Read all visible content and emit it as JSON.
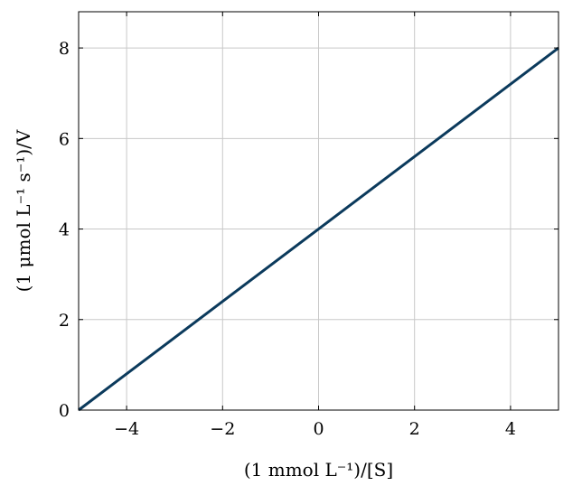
{
  "chart_data": {
    "type": "line",
    "title": "",
    "xlabel": "(1 mmol L⁻¹)/[S]",
    "ylabel": "(1 μmol L⁻¹ s⁻¹)/V",
    "xlim": [
      -5,
      5
    ],
    "ylim": [
      0,
      8.8
    ],
    "x_ticks": [
      -4,
      -2,
      0,
      2,
      4
    ],
    "y_ticks": [
      0,
      2,
      4,
      6,
      8
    ],
    "x_tick_labels": [
      "−4",
      "−2",
      "0",
      "2",
      "4"
    ],
    "y_tick_labels": [
      "0",
      "2",
      "4",
      "6",
      "8"
    ],
    "grid": true,
    "series": [
      {
        "x": [
          -5,
          5
        ],
        "y": [
          0,
          8
        ],
        "color": "#0b3a5c"
      }
    ]
  }
}
